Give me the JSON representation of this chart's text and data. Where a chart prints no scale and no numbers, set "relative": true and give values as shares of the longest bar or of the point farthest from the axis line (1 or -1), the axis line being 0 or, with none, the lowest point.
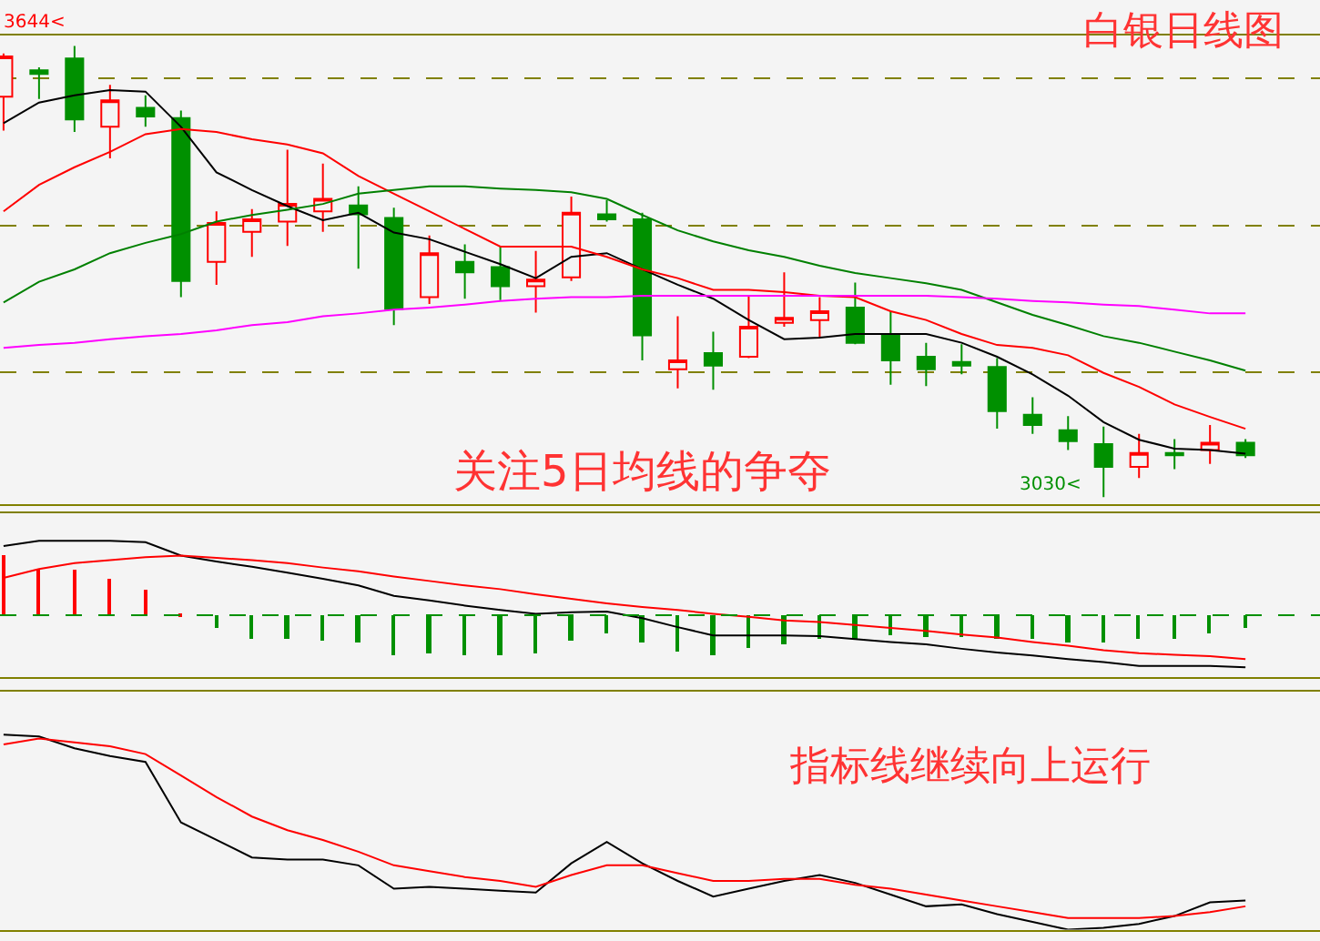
{
  "chart_data": [
    {
      "type": "candlestick",
      "title": "白银日线图",
      "categories": [
        null,
        null,
        null,
        null,
        null,
        null,
        null,
        null,
        null,
        null,
        null,
        null,
        null,
        null,
        null,
        null,
        null,
        null,
        null,
        null,
        null,
        null,
        null,
        null,
        null,
        null,
        null,
        null,
        null,
        null,
        null,
        null,
        null,
        null,
        null,
        null
      ],
      "ohlc": [
        [
          3575,
          3634,
          3529,
          3630
        ],
        [
          3611,
          3615,
          3572,
          3606
        ],
        [
          3627,
          3644,
          3527,
          3544
        ],
        [
          3534,
          3591,
          3491,
          3570
        ],
        [
          3560,
          3577,
          3534,
          3548
        ],
        [
          3546,
          3556,
          3302,
          3324
        ],
        [
          3350,
          3419,
          3319,
          3403
        ],
        [
          3391,
          3422,
          3357,
          3408
        ],
        [
          3405,
          3503,
          3372,
          3429
        ],
        [
          3419,
          3484,
          3391,
          3436
        ],
        [
          3427,
          3453,
          3341,
          3415
        ],
        [
          3410,
          3424,
          3264,
          3286
        ],
        [
          3302,
          3386,
          3293,
          3362
        ],
        [
          3350,
          3374,
          3300,
          3336
        ],
        [
          3343,
          3372,
          3298,
          3317
        ],
        [
          3317,
          3365,
          3281,
          3326
        ],
        [
          3329,
          3439,
          3324,
          3417
        ],
        [
          3415,
          3434,
          3405,
          3408
        ],
        [
          3408,
          3417,
          3216,
          3250
        ],
        [
          3204,
          3276,
          3178,
          3216
        ],
        [
          3226,
          3255,
          3176,
          3209
        ],
        [
          3221,
          3305,
          3219,
          3262
        ],
        [
          3267,
          3336,
          3262,
          3274
        ],
        [
          3271,
          3302,
          3247,
          3283
        ],
        [
          3288,
          3322,
          3238,
          3240
        ],
        [
          3252,
          3283,
          3183,
          3216
        ],
        [
          3221,
          3240,
          3181,
          3204
        ],
        [
          3214,
          3238,
          3197,
          3209
        ],
        [
          3207,
          3219,
          3123,
          3147
        ],
        [
          3142,
          3166,
          3116,
          3128
        ],
        [
          3121,
          3140,
          3094,
          3106
        ],
        [
          3102,
          3126,
          3030,
          3071
        ],
        [
          3071,
          3116,
          3056,
          3090
        ],
        [
          3090,
          3109,
          3068,
          3087
        ],
        [
          3094,
          3128,
          3075,
          3104
        ],
        [
          3104,
          3109,
          3083,
          3087
        ]
      ],
      "colors": [
        "#ff0000",
        "#009000",
        "#009000",
        "#ff0000",
        "#009000",
        "#009000",
        "#ff0000",
        "#ff0000",
        "#ff0000",
        "#ff0000",
        "#009000",
        "#009000",
        "#ff0000",
        "#009000",
        "#009000",
        "#ff0000",
        "#ff0000",
        "#009000",
        "#009000",
        "#ff0000",
        "#009000",
        "#ff0000",
        "#ff0000",
        "#ff0000",
        "#009000",
        "#009000",
        "#009000",
        "#009000",
        "#009000",
        "#009000",
        "#009000",
        "#009000",
        "#ff0000",
        "#009000",
        "#ff0000",
        "#009000"
      ],
      "series": [
        {
          "type": "line",
          "color": "#000000",
          "values": [
            3539,
            3567,
            3577,
            3584,
            3582,
            3534,
            3472,
            3448,
            3426,
            3407,
            3417,
            3390,
            3381,
            3364,
            3347,
            3328,
            3357,
            3362,
            3340,
            3319,
            3300,
            3271,
            3245,
            3247,
            3252,
            3252,
            3252,
            3240,
            3221,
            3197,
            3168,
            3132,
            3108,
            3096,
            3094,
            3089
          ]
        },
        {
          "type": "line",
          "color": "#ff0000",
          "values": [
            3419,
            3455,
            3479,
            3500,
            3524,
            3531,
            3527,
            3517,
            3510,
            3498,
            3467,
            3443,
            3419,
            3395,
            3371,
            3371,
            3371,
            3357,
            3340,
            3328,
            3312,
            3312,
            3309,
            3304,
            3302,
            3283,
            3271,
            3252,
            3237,
            3233,
            3223,
            3199,
            3180,
            3156,
            3139,
            3123
          ]
        },
        {
          "type": "line",
          "color": "#008000",
          "values": [
            3295,
            3323,
            3340,
            3362,
            3376,
            3388,
            3405,
            3414,
            3421,
            3429,
            3443,
            3448,
            3453,
            3453,
            3450,
            3448,
            3445,
            3436,
            3414,
            3393,
            3378,
            3366,
            3357,
            3345,
            3335,
            3328,
            3321,
            3312,
            3295,
            3278,
            3264,
            3249,
            3240,
            3228,
            3216,
            3202
          ]
        },
        {
          "type": "line",
          "color": "#ff00ff",
          "values": [
            3233,
            3237,
            3240,
            3245,
            3249,
            3252,
            3257,
            3264,
            3268,
            3276,
            3280,
            3285,
            3288,
            3292,
            3297,
            3300,
            3302,
            3302,
            3304,
            3304,
            3304,
            3304,
            3304,
            3304,
            3304,
            3304,
            3304,
            3302,
            3300,
            3297,
            3295,
            3292,
            3290,
            3285,
            3280,
            3280
          ]
        }
      ],
      "annotations": [
        "关注5日均线的争夺",
        "3644<",
        "3030<"
      ],
      "ylim": [
        3020,
        3658
      ],
      "yticks": [
        {
          "value": 3200,
          "label": null
        },
        {
          "value": 3400,
          "label": null
        },
        {
          "value": 3600,
          "label": null
        }
      ],
      "grid": "y"
    },
    {
      "type": "bar",
      "relative": true,
      "categories": [
        null,
        null,
        null,
        null,
        null,
        null,
        null,
        null,
        null,
        null,
        null,
        null,
        null,
        null,
        null,
        null,
        null,
        null,
        null,
        null,
        null,
        null,
        null,
        null,
        null,
        null,
        null,
        null,
        null,
        null,
        null,
        null,
        null,
        null,
        null,
        null
      ],
      "series": [
        {
          "type": "bar",
          "colors": [
            "#ff0000",
            "#ff0000",
            "#ff0000",
            "#ff0000",
            "#ff0000",
            "#ff0000",
            "#009000",
            "#009000",
            "#009000",
            "#009000",
            "#009000",
            "#009000",
            "#009000",
            "#009000",
            "#009000",
            "#009000",
            "#009000",
            "#009000",
            "#009000",
            "#009000",
            "#009000",
            "#009000",
            "#009000",
            "#009000",
            "#009000",
            "#009000",
            "#009000",
            "#009000",
            "#009000",
            "#009000",
            "#009000",
            "#009000",
            "#009000",
            "#009000",
            "#009000",
            "#009000"
          ],
          "values": [
            0.82,
            0.62,
            0.61,
            0.49,
            0.36,
            0.01,
            -0.17,
            -0.3,
            -0.3,
            -0.33,
            -0.36,
            -0.52,
            -0.5,
            -0.52,
            -0.52,
            -0.5,
            -0.33,
            -0.25,
            -0.36,
            -0.48,
            -0.52,
            -0.43,
            -0.39,
            -0.3,
            -0.3,
            -0.27,
            -0.28,
            -0.28,
            -0.3,
            -0.3,
            -0.35,
            -0.36,
            -0.3,
            -0.3,
            -0.23,
            -0.17
          ]
        },
        {
          "type": "line",
          "color": "#000000",
          "values": [
            0.93,
            1.0,
            1.0,
            1.0,
            0.98,
            0.8,
            0.72,
            0.65,
            0.57,
            0.49,
            0.4,
            0.26,
            0.2,
            0.13,
            0.07,
            0.02,
            0.04,
            0.05,
            -0.04,
            -0.16,
            -0.27,
            -0.27,
            -0.27,
            -0.28,
            -0.32,
            -0.36,
            -0.39,
            -0.45,
            -0.5,
            -0.54,
            -0.59,
            -0.63,
            -0.68,
            -0.68,
            -0.68,
            -0.7
          ]
        },
        {
          "type": "line",
          "color": "#ff0000",
          "values": [
            0.5,
            0.62,
            0.7,
            0.74,
            0.78,
            0.8,
            0.77,
            0.74,
            0.7,
            0.64,
            0.59,
            0.52,
            0.46,
            0.4,
            0.35,
            0.28,
            0.22,
            0.16,
            0.11,
            0.07,
            0.02,
            -0.02,
            -0.07,
            -0.09,
            -0.13,
            -0.17,
            -0.21,
            -0.26,
            -0.3,
            -0.36,
            -0.41,
            -0.47,
            -0.51,
            -0.53,
            -0.55,
            -0.59
          ]
        }
      ],
      "ref_lines": [
        {
          "axis": "y",
          "value": 0,
          "color": "#009000",
          "line_style": "dashed"
        }
      ]
    },
    {
      "type": "line",
      "relative": true,
      "categories": [
        null,
        null,
        null,
        null,
        null,
        null,
        null,
        null,
        null,
        null,
        null,
        null,
        null,
        null,
        null,
        null,
        null,
        null,
        null,
        null,
        null,
        null,
        null,
        null,
        null,
        null,
        null,
        null,
        null,
        null,
        null,
        null,
        null,
        null,
        null,
        null
      ],
      "series": [
        {
          "color": "#000000",
          "values": [
            1.0,
            0.99,
            0.93,
            0.89,
            0.86,
            0.55,
            0.46,
            0.37,
            0.36,
            0.36,
            0.33,
            0.21,
            0.22,
            0.21,
            0.2,
            0.19,
            0.34,
            0.45,
            0.34,
            0.25,
            0.17,
            0.21,
            0.25,
            0.28,
            0.24,
            0.18,
            0.12,
            0.13,
            0.08,
            0.04,
            0.0,
            0.01,
            0.03,
            0.07,
            0.14,
            0.15
          ]
        },
        {
          "color": "#ff0000",
          "values": [
            0.95,
            0.98,
            0.96,
            0.94,
            0.9,
            0.79,
            0.68,
            0.58,
            0.51,
            0.46,
            0.4,
            0.33,
            0.3,
            0.27,
            0.25,
            0.22,
            0.28,
            0.33,
            0.33,
            0.29,
            0.25,
            0.25,
            0.26,
            0.26,
            0.23,
            0.21,
            0.18,
            0.15,
            0.12,
            0.09,
            0.06,
            0.06,
            0.06,
            0.07,
            0.09,
            0.12
          ]
        }
      ],
      "annotations": [
        "指标线继续向上运行"
      ]
    }
  ]
}
